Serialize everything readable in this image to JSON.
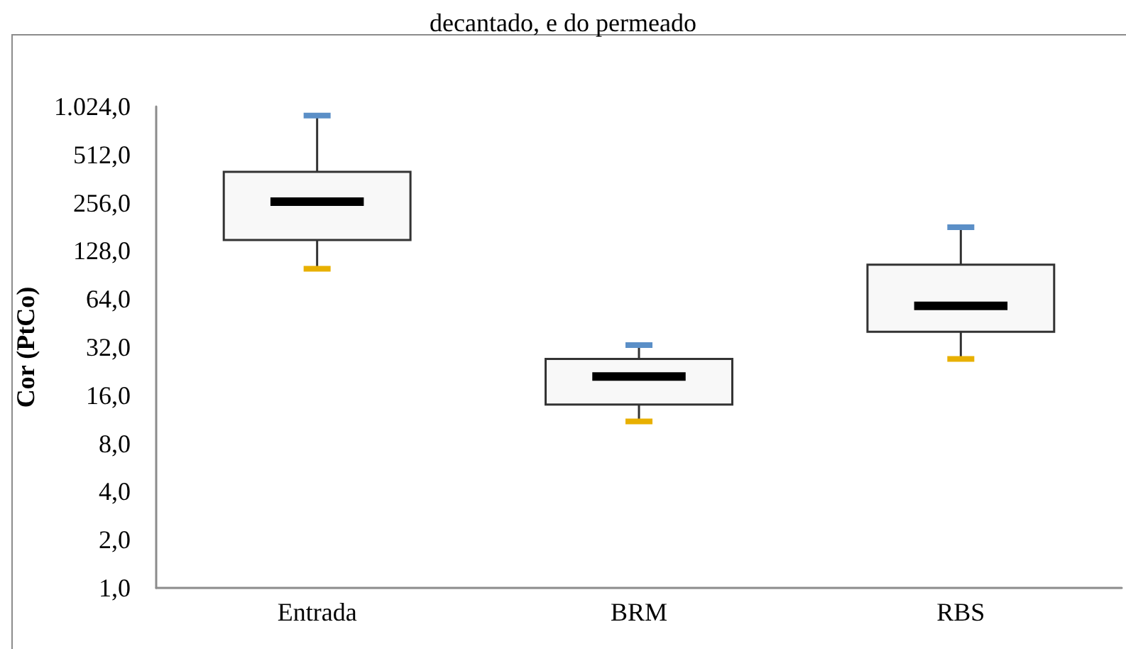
{
  "chart_data": {
    "type": "box",
    "title": "decantado, e do permeado",
    "ylabel": "Cor (PtCo)",
    "categories": [
      "Entrada",
      "BRM",
      "RBS"
    ],
    "boxes": [
      {
        "low": 99,
        "q1": 150,
        "median": 260,
        "q3": 400,
        "high": 900
      },
      {
        "low": 11,
        "q1": 14,
        "median": 21,
        "q3": 27,
        "high": 33
      },
      {
        "low": 27,
        "q1": 40,
        "median": 58,
        "q3": 105,
        "high": 180
      }
    ],
    "log": true,
    "ylim": [
      1,
      1024
    ],
    "yticks": [
      {
        "value": 1,
        "label": "1,0"
      },
      {
        "value": 2,
        "label": "2,0"
      },
      {
        "value": 4,
        "label": "4,0"
      },
      {
        "value": 8,
        "label": "8,0"
      },
      {
        "value": 16,
        "label": "16,0"
      },
      {
        "value": 32,
        "label": "32,0"
      },
      {
        "value": 64,
        "label": "64,0"
      },
      {
        "value": 128,
        "label": "128,0"
      },
      {
        "value": 256,
        "label": "256,0"
      },
      {
        "value": 512,
        "label": "512,0"
      },
      {
        "value": 1024,
        "label": "1.024,0"
      }
    ],
    "grid": false
  }
}
